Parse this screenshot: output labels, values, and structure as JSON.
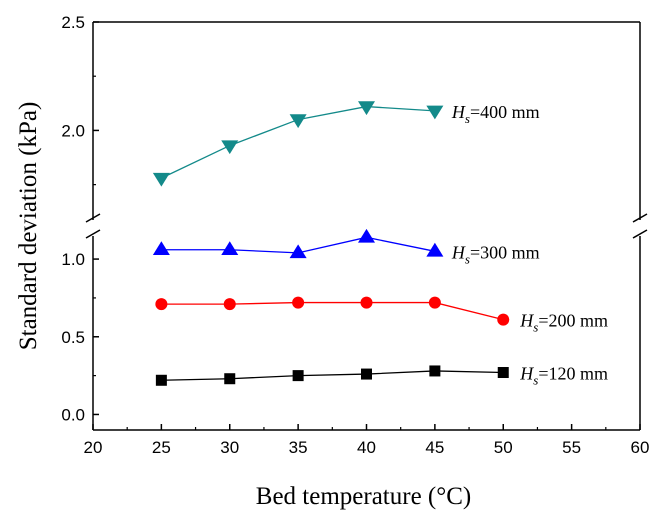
{
  "chart_data": {
    "type": "line",
    "xlabel": "Bed temperature (°C)",
    "ylabel": "Standard deviation (kPa)",
    "xlim": [
      20,
      60
    ],
    "x_ticks": [
      "20",
      "25",
      "30",
      "35",
      "40",
      "45",
      "50",
      "55",
      "60"
    ],
    "y_axis_broken": true,
    "y_lower_range": [
      -0.1,
      1.2
    ],
    "y_upper_range": [
      1.55,
      2.5
    ],
    "y_ticks": [
      "0.0",
      "0.5",
      "1.0",
      "2.0",
      "2.5"
    ],
    "grid": false,
    "series": [
      {
        "name_italic": "H",
        "name_sub": "s",
        "name_rest": "=400 mm",
        "marker": "triangle-down",
        "color": "#138a8a",
        "x": [
          25,
          30,
          35,
          40,
          45
        ],
        "y": [
          1.78,
          1.93,
          2.05,
          2.11,
          2.09
        ]
      },
      {
        "name_italic": "H",
        "name_sub": "s",
        "name_rest": "=300 mm",
        "marker": "triangle-up",
        "color": "#0000ff",
        "x": [
          25,
          30,
          35,
          40,
          45
        ],
        "y": [
          1.06,
          1.06,
          1.04,
          1.14,
          1.05
        ]
      },
      {
        "name_italic": "H",
        "name_sub": "s",
        "name_rest": "=200 mm",
        "marker": "circle",
        "color": "#ff0000",
        "x": [
          25,
          30,
          35,
          40,
          45,
          50
        ],
        "y": [
          0.71,
          0.71,
          0.72,
          0.72,
          0.72,
          0.61
        ]
      },
      {
        "name_italic": "H",
        "name_sub": "s",
        "name_rest": "=120 mm",
        "marker": "square",
        "color": "#000000",
        "x": [
          25,
          30,
          35,
          40,
          45,
          50
        ],
        "y": [
          0.22,
          0.23,
          0.25,
          0.26,
          0.28,
          0.27
        ]
      }
    ]
  }
}
